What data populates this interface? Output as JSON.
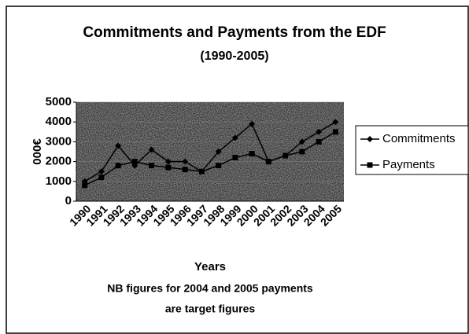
{
  "chart_data": {
    "type": "line",
    "title": "Commitments and Payments from the EDF",
    "subtitle": "(1990-2005)",
    "x_label": "Years",
    "y_label": "000€",
    "annotations": [
      "NB figures for 2004 and 2005 payments",
      "are target figures"
    ],
    "categories": [
      "1990",
      "1991",
      "1992",
      "1993",
      "1994",
      "1995",
      "1996",
      "1997",
      "1998",
      "1999",
      "2000",
      "2001",
      "2002",
      "2003",
      "2004",
      "2005"
    ],
    "series": [
      {
        "name": "Commitments",
        "color": "#000000",
        "marker": "diamond",
        "values": [
          1000,
          1500,
          2800,
          1800,
          2600,
          2000,
          2000,
          1500,
          2500,
          3200,
          3900,
          2000,
          2300,
          3000,
          3500,
          4000
        ]
      },
      {
        "name": "Payments",
        "color": "#000000",
        "marker": "square",
        "values": [
          800,
          1200,
          1800,
          2000,
          1800,
          1700,
          1600,
          1500,
          1800,
          2200,
          2400,
          2000,
          2300,
          2500,
          3000,
          3500
        ]
      }
    ],
    "ylim": [
      0,
      5000
    ],
    "yticks": [
      0,
      1000,
      2000,
      3000,
      4000,
      5000
    ],
    "grid": true,
    "legend": "right"
  }
}
